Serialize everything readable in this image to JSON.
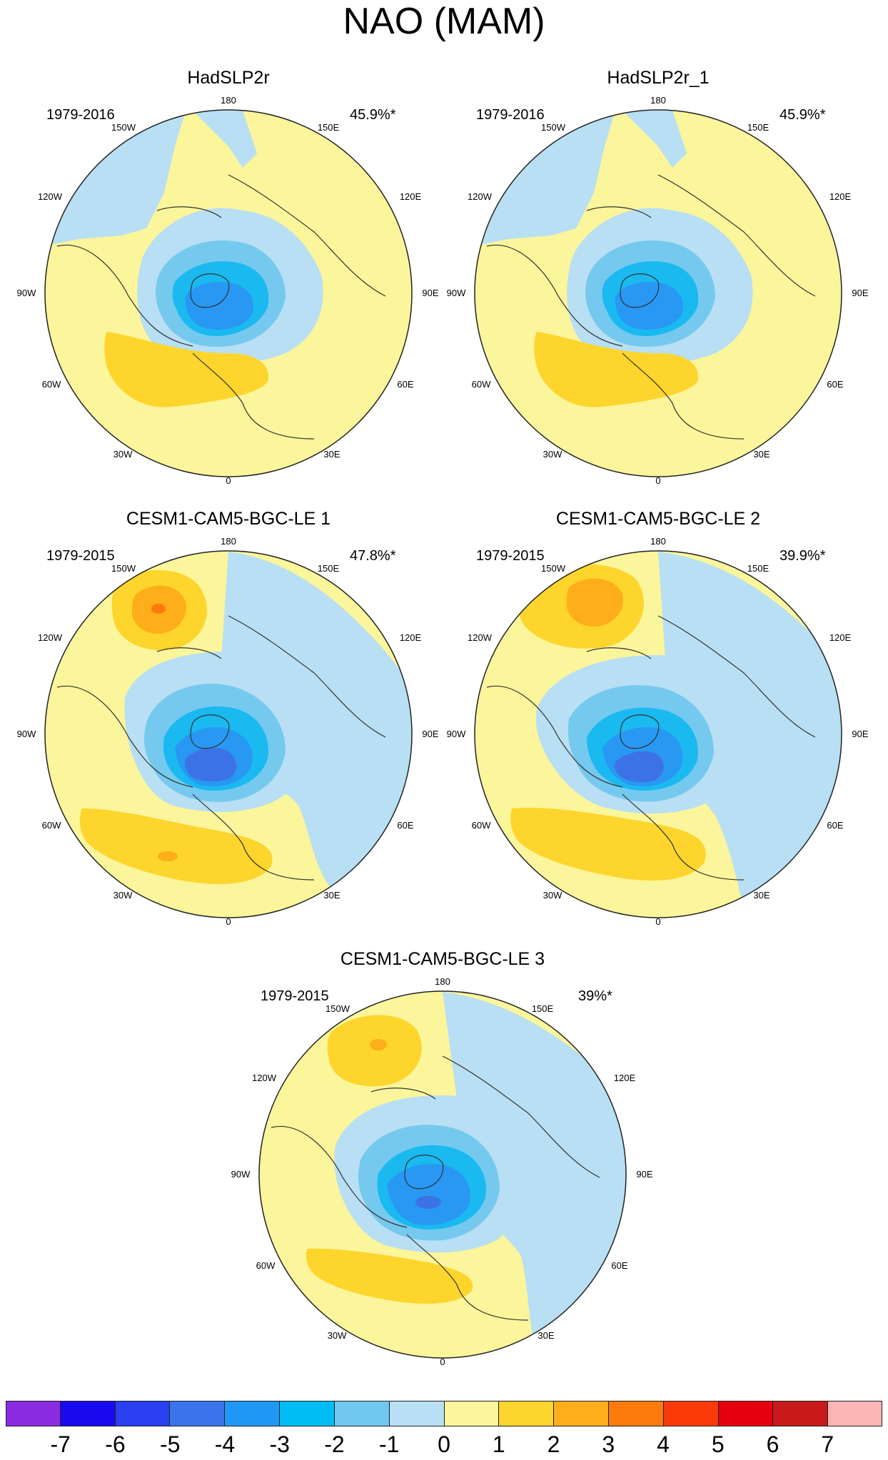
{
  "title": "NAO (MAM)",
  "colors": {
    "ocean_light_blue": "#b8dff3",
    "neutral_yellow": "#fbf59b",
    "pos1": "#fdd52c",
    "pos2": "#fdae1a",
    "pos3": "#fc7b0c",
    "neg2": "#75c9ef",
    "neg3": "#1ab9f0",
    "neg4": "#2898f3",
    "neg5": "#3c72e5",
    "neg6": "#3f44dc",
    "coast": "#333333"
  },
  "longitude_labels": [
    "180",
    "150E",
    "120E",
    "90E",
    "60E",
    "30E",
    "0",
    "30W",
    "60W",
    "90W",
    "120W",
    "150W"
  ],
  "panels": [
    {
      "title": "HadSLP2r",
      "years": "1979-2016",
      "variance": "45.9%*"
    },
    {
      "title": "HadSLP2r_1",
      "years": "1979-2016",
      "variance": "45.9%*"
    },
    {
      "title": "CESM1-CAM5-BGC-LE 1",
      "years": "1979-2015",
      "variance": "47.8%*"
    },
    {
      "title": "CESM1-CAM5-BGC-LE 2",
      "years": "1979-2015",
      "variance": "39.9%*"
    },
    {
      "title": "CESM1-CAM5-BGC-LE 3",
      "years": "1979-2015",
      "variance": "39%*"
    }
  ],
  "colorbar": {
    "labels": [
      "-7",
      "-6",
      "-5",
      "-4",
      "-3",
      "-2",
      "-1",
      "0",
      "1",
      "2",
      "3",
      "4",
      "5",
      "6",
      "7"
    ],
    "colors": [
      "#8a2be2",
      "#1a0af0",
      "#2a3ff0",
      "#3a74ec",
      "#2098f5",
      "#00bcf5",
      "#6ec8f0",
      "#b8dff3",
      "#fbf59b",
      "#fdd52c",
      "#fdae1a",
      "#fc7b0c",
      "#fb3a0a",
      "#e6000e",
      "#c81a1a",
      "#fbb5b5"
    ]
  }
}
